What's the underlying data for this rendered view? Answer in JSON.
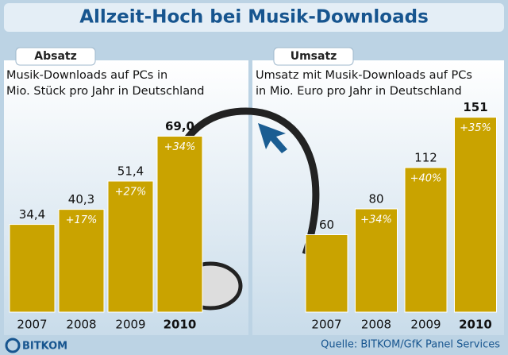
{
  "header": {
    "title": "Allzeit-Hoch bei Musik-Downloads"
  },
  "chart_data": [
    {
      "type": "bar",
      "title": "Absatz",
      "subtitle": [
        "Musik-Downloads auf PCs in",
        "Mio. Stück pro Jahr in Deutschland"
      ],
      "categories": [
        "2007",
        "2008",
        "2009",
        "2010"
      ],
      "values": [
        34.4,
        40.3,
        51.4,
        69.0
      ],
      "value_labels": [
        "34,4",
        "40,3",
        "51,4",
        "69,0"
      ],
      "annotations": [
        null,
        "+17%",
        "+27%",
        "+34%"
      ],
      "color": "#c9a300",
      "ylim": [
        0,
        81
      ]
    },
    {
      "type": "bar",
      "title": "Umsatz",
      "subtitle": [
        "Umsatz mit Musik-Downloads auf PCs",
        "in Mio. Euro pro Jahr in Deutschland"
      ],
      "categories": [
        "2007",
        "2008",
        "2009",
        "2010"
      ],
      "values": [
        60,
        80,
        112,
        151
      ],
      "annotations": [
        null,
        "+34%",
        "+40%",
        "+35%"
      ],
      "color": "#c9a300",
      "ylim": [
        0,
        160
      ]
    }
  ],
  "footer": {
    "logo": "BITKOM",
    "source": "Quelle: BITKOM/GfK Panel Services"
  }
}
